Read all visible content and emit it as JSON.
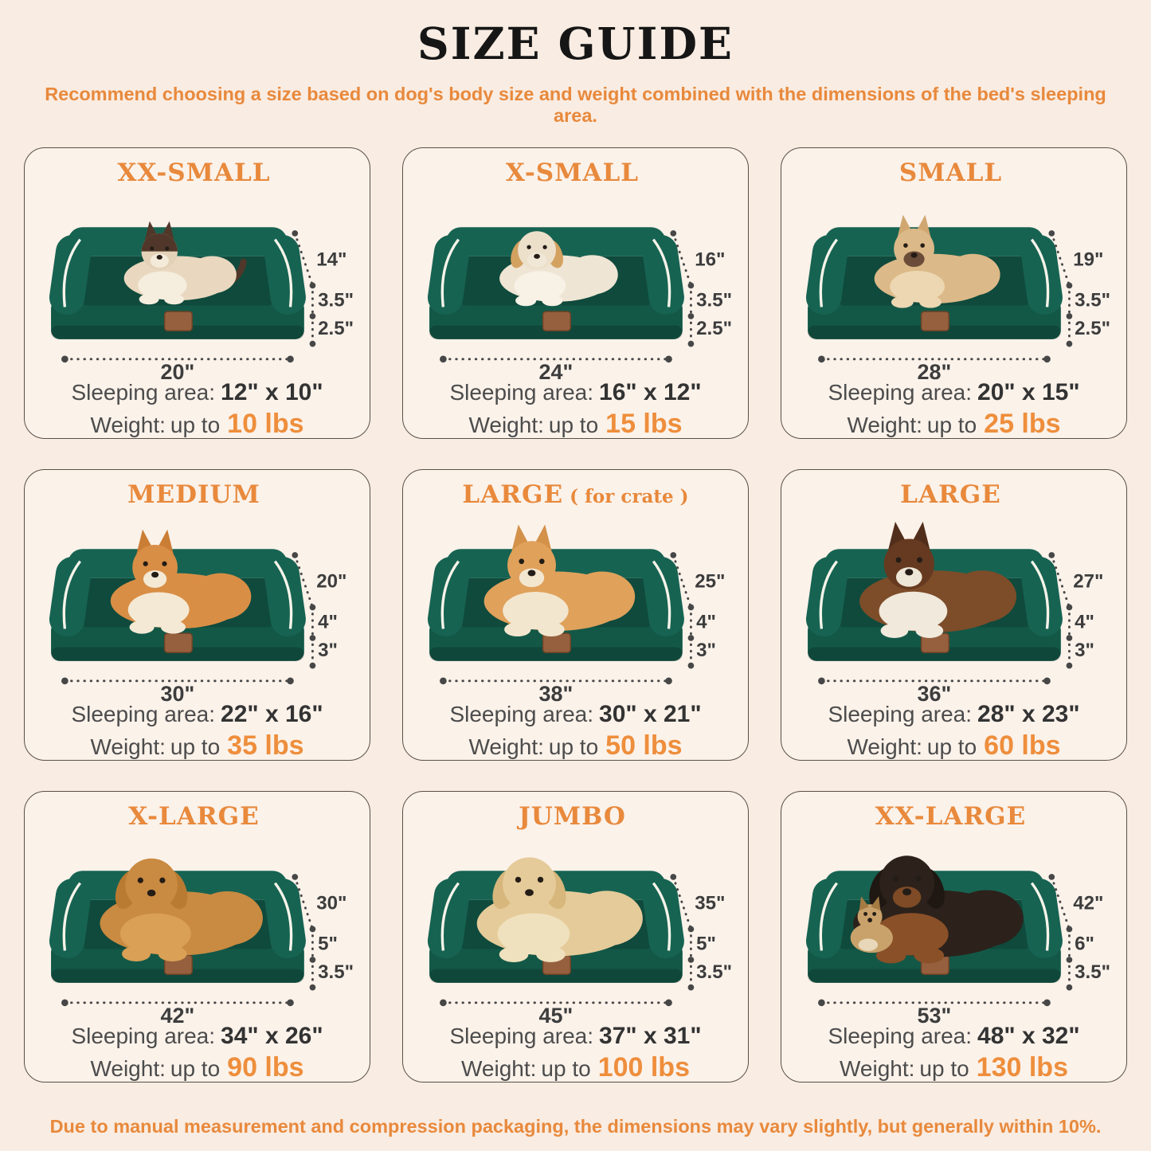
{
  "page": {
    "title": "SIZE GUIDE",
    "subtitle": "Recommend choosing a size based on dog's body size and weight combined with the dimensions of the bed's sleeping area.",
    "footnote": "Due to manual measurement and compression packaging, the dimensions may vary slightly, but generally within 10%.",
    "colors": {
      "background": "#f9ece2",
      "card_background": "#fbf2ea",
      "card_border": "#585046",
      "accent_orange": "#e8893c",
      "weight_orange": "#ee8e3c",
      "text_gray": "#4c4c4c",
      "dimension_text": "#3d3d3d",
      "bed_green_bolster": "#176352",
      "bed_green_mattress": "#0f4a3c",
      "bed_green_base": "#135847",
      "piping_white": "#f7f4ea",
      "brand_tag_brown": "#96603e"
    }
  },
  "labels": {
    "sleeping_area": "Sleeping area:",
    "weight": "Weight:",
    "up_to": "up to"
  },
  "cards": [
    {
      "title": "XX-SMALL",
      "title_suffix": "",
      "animal": "cat-on-bed",
      "dimensions": {
        "back_height": "14\"",
        "bolster_height": "3.5\"",
        "base_height": "2.5\"",
        "width": "20\""
      },
      "sleeping_area": "12\" x 10\"",
      "weight": "10 lbs",
      "art": {
        "body": "#e9d8bf",
        "head": "#e3d2b8",
        "ear": "#503729",
        "chest": "#f5edde",
        "muzzle": "#f3ead9",
        "scale": 0.76,
        "ears": "pointy",
        "mask": true,
        "tail": true,
        "companion": false
      }
    },
    {
      "title": "X-SMALL",
      "title_suffix": "",
      "animal": "small-dog-on-bed",
      "dimensions": {
        "back_height": "16\"",
        "bolster_height": "3.5\"",
        "base_height": "2.5\"",
        "width": "24\""
      },
      "sleeping_area": "16\" x 12\"",
      "weight": "15 lbs",
      "art": {
        "body": "#efe5d4",
        "head": "#ece0cb",
        "ear": "#d3a160",
        "chest": "#f7f1e6",
        "muzzle": "#f0e7d6",
        "scale": 0.8,
        "ears": "floppy",
        "mask": false,
        "tail": false,
        "companion": false
      }
    },
    {
      "title": "SMALL",
      "title_suffix": "",
      "animal": "french-bulldog-on-bed",
      "dimensions": {
        "back_height": "19\"",
        "bolster_height": "3.5\"",
        "base_height": "2.5\"",
        "width": "28\""
      },
      "sleeping_area": "20\" x 15\"",
      "weight": "25 lbs",
      "art": {
        "body": "#dcb988",
        "head": "#dcb988",
        "ear": "#d0a770",
        "chest": "#ecd7b2",
        "muzzle": "#6b4c38",
        "scale": 0.85,
        "ears": "pointy",
        "mask": false,
        "tail": false,
        "companion": false
      }
    },
    {
      "title": "MEDIUM",
      "title_suffix": "",
      "animal": "corgi-on-bed",
      "dimensions": {
        "back_height": "20\"",
        "bolster_height": "4\"",
        "base_height": "3\"",
        "width": "30\""
      },
      "sleeping_area": "22\" x 16\"",
      "weight": "35 lbs",
      "art": {
        "body": "#d98e45",
        "head": "#d98e45",
        "ear": "#ca7d35",
        "chest": "#f4e9d5",
        "muzzle": "#f4e9d5",
        "scale": 0.95,
        "ears": "pointy",
        "mask": false,
        "tail": false,
        "companion": false
      }
    },
    {
      "title": "LARGE",
      "title_suffix": "( for crate )",
      "animal": "shiba-on-bed",
      "dimensions": {
        "back_height": "25\"",
        "bolster_height": "4\"",
        "base_height": "3\"",
        "width": "38\""
      },
      "sleeping_area": "30\" x 21\"",
      "weight": "50 lbs",
      "art": {
        "body": "#e0a15b",
        "head": "#e0a15b",
        "ear": "#d3914a",
        "chest": "#f3e6cf",
        "muzzle": "#f3e6cf",
        "scale": 1.02,
        "ears": "pointy",
        "mask": false,
        "tail": false,
        "companion": false
      }
    },
    {
      "title": "LARGE",
      "title_suffix": "",
      "animal": "collie-on-bed",
      "dimensions": {
        "back_height": "27\"",
        "bolster_height": "4\"",
        "base_height": "3\"",
        "width": "36\""
      },
      "sleeping_area": "28\" x 23\"",
      "weight": "60 lbs",
      "art": {
        "body": "#7d4c29",
        "head": "#663a20",
        "ear": "#512e1b",
        "chest": "#f0e9dc",
        "muzzle": "#eee6d6",
        "scale": 1.06,
        "ears": "pointy",
        "mask": false,
        "tail": false,
        "companion": false
      }
    },
    {
      "title": "X-LARGE",
      "title_suffix": "",
      "animal": "golden-retriever-on-bed",
      "dimensions": {
        "back_height": "30\"",
        "bolster_height": "5\"",
        "base_height": "3.5\"",
        "width": "42\""
      },
      "sleeping_area": "34\" x 26\"",
      "weight": "90 lbs",
      "art": {
        "body": "#c98a41",
        "head": "#c98a41",
        "ear": "#b97a31",
        "chest": "#daa055",
        "muzzle": "#c98a41",
        "scale": 1.1,
        "ears": "floppy",
        "mask": false,
        "tail": false,
        "companion": false
      }
    },
    {
      "title": "JUMBO",
      "title_suffix": "",
      "animal": "labrador-on-bed",
      "dimensions": {
        "back_height": "35\"",
        "bolster_height": "5\"",
        "base_height": "3.5\"",
        "width": "45\""
      },
      "sleeping_area": "37\" x 31\"",
      "weight": "100 lbs",
      "art": {
        "body": "#e5cb99",
        "head": "#e5cb99",
        "ear": "#d7b77c",
        "chest": "#efe1bd",
        "muzzle": "#e5cb99",
        "scale": 1.12,
        "ears": "floppy",
        "mask": false,
        "tail": false,
        "companion": false
      }
    },
    {
      "title": "XX-LARGE",
      "title_suffix": "",
      "animal": "rottweiler-and-chihuahua-on-bed",
      "dimensions": {
        "back_height": "42\"",
        "bolster_height": "6\"",
        "base_height": "3.5\"",
        "width": "53\""
      },
      "sleeping_area": "48\" x 32\"",
      "weight": "130 lbs",
      "art": {
        "body": "#2c221b",
        "head": "#2c221b",
        "ear": "#1f1711",
        "chest": "#8a5028",
        "muzzle": "#7e4b26",
        "scale": 1.15,
        "ears": "floppy",
        "mask": false,
        "tail": false,
        "companion": true
      }
    }
  ]
}
